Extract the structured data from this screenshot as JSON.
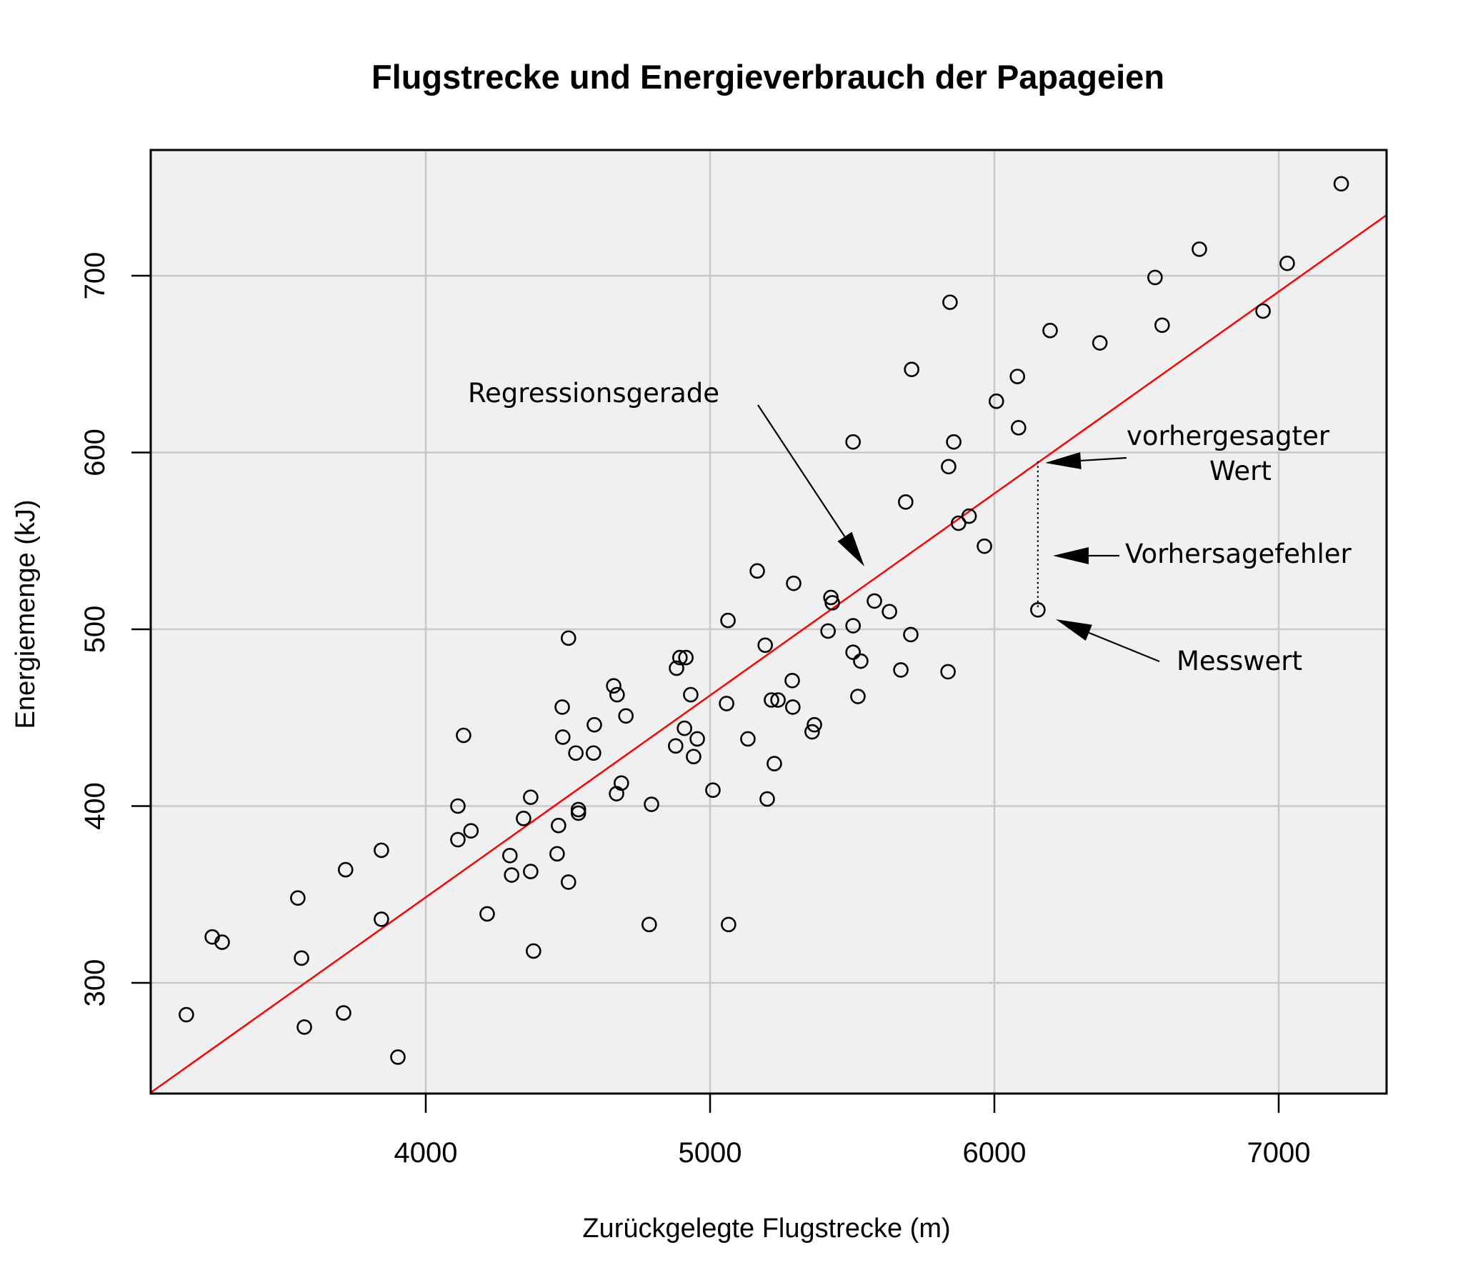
{
  "chart_data": {
    "type": "scatter",
    "title": "Flugstrecke und Energieverbrauch der Papageien",
    "xlabel": "Zurückgelegte Flugstrecke (m)",
    "ylabel": "Energiemenge (kJ)",
    "xlim": [
      3033,
      7382
    ],
    "ylim": [
      237,
      771
    ],
    "x_ticks": [
      4000,
      5000,
      6000,
      7000
    ],
    "y_ticks": [
      300,
      400,
      500,
      600,
      700
    ],
    "grid": true,
    "background": "#f0f0f0",
    "grid_color": "#c8c8c8",
    "point_style": "open-circle",
    "point_color": "#000000",
    "regression_line": {
      "color": "#ff0000",
      "slope": 0.1142,
      "intercept": -108.4,
      "x_range": [
        3033,
        7382
      ]
    },
    "points": [
      [
        3158,
        282
      ],
      [
        3249,
        326
      ],
      [
        3284,
        323
      ],
      [
        3550,
        348
      ],
      [
        3563,
        314
      ],
      [
        3573,
        275
      ],
      [
        3711,
        283
      ],
      [
        3718,
        364
      ],
      [
        3844,
        375
      ],
      [
        3844,
        336
      ],
      [
        3902,
        258
      ],
      [
        4113,
        400
      ],
      [
        4113,
        381
      ],
      [
        4133,
        440
      ],
      [
        4159,
        386
      ],
      [
        4216,
        339
      ],
      [
        4296,
        372
      ],
      [
        4302,
        361
      ],
      [
        4344,
        393
      ],
      [
        4369,
        405
      ],
      [
        4369,
        363
      ],
      [
        4379,
        318
      ],
      [
        4462,
        373
      ],
      [
        4467,
        389
      ],
      [
        4480,
        456
      ],
      [
        4482,
        439
      ],
      [
        4502,
        495
      ],
      [
        4502,
        357
      ],
      [
        4528,
        430
      ],
      [
        4537,
        398
      ],
      [
        4537,
        396
      ],
      [
        4590,
        430
      ],
      [
        4593,
        446
      ],
      [
        4661,
        468
      ],
      [
        4671,
        407
      ],
      [
        4673,
        463
      ],
      [
        4688,
        413
      ],
      [
        4704,
        451
      ],
      [
        4786,
        333
      ],
      [
        4794,
        401
      ],
      [
        4879,
        434
      ],
      [
        4882,
        478
      ],
      [
        4894,
        484
      ],
      [
        4910,
        444
      ],
      [
        4915,
        484
      ],
      [
        4932,
        463
      ],
      [
        4942,
        428
      ],
      [
        4955,
        438
      ],
      [
        5010,
        409
      ],
      [
        5058,
        458
      ],
      [
        5063,
        505
      ],
      [
        5065,
        333
      ],
      [
        5133,
        438
      ],
      [
        5166,
        533
      ],
      [
        5194,
        491
      ],
      [
        5201,
        404
      ],
      [
        5216,
        460
      ],
      [
        5226,
        424
      ],
      [
        5239,
        460
      ],
      [
        5289,
        471
      ],
      [
        5291,
        456
      ],
      [
        5294,
        526
      ],
      [
        5359,
        442
      ],
      [
        5367,
        446
      ],
      [
        5415,
        499
      ],
      [
        5425,
        518
      ],
      [
        5430,
        515
      ],
      [
        5503,
        502
      ],
      [
        5503,
        487
      ],
      [
        5503,
        606
      ],
      [
        5520,
        462
      ],
      [
        5530,
        482
      ],
      [
        5578,
        516
      ],
      [
        5631,
        510
      ],
      [
        5671,
        477
      ],
      [
        5688,
        572
      ],
      [
        5706,
        497
      ],
      [
        5709,
        647
      ],
      [
        5837,
        476
      ],
      [
        5839,
        592
      ],
      [
        5844,
        685
      ],
      [
        5857,
        606
      ],
      [
        5874,
        560
      ],
      [
        5911,
        564
      ],
      [
        5965,
        547
      ],
      [
        6007,
        629
      ],
      [
        6081,
        643
      ],
      [
        6085,
        614
      ],
      [
        6153,
        511
      ],
      [
        6196,
        669
      ],
      [
        6371,
        662
      ],
      [
        6565,
        699
      ],
      [
        6590,
        672
      ],
      [
        6721,
        715
      ],
      [
        6945,
        680
      ],
      [
        7030,
        707
      ],
      [
        7220,
        752
      ]
    ],
    "annotations": [
      {
        "text": "Regressionsgerade",
        "points_to": "regression line",
        "arrow_tip": [
          5550,
          532
        ]
      },
      {
        "text": "vorhergesagter Wert",
        "lines": [
          "vorhergesagter",
          "Wert"
        ],
        "points_to": [
          6153,
          595
        ]
      },
      {
        "text": "Vorhersagefehler",
        "points_to": "residual segment at x=6153 between 511 and 595"
      },
      {
        "text": "Messwert",
        "points_to": [
          6153,
          511
        ]
      }
    ],
    "highlighted_residual": {
      "x": 6153,
      "predicted": 595,
      "measured": 511
    }
  },
  "labels": {
    "title": "Flugstrecke und Energieverbrauch der Papageien",
    "xlabel": "Zurückgelegte Flugstrecke (m)",
    "ylabel": "Energiemenge (kJ)",
    "x_ticks": [
      "4000",
      "5000",
      "6000",
      "7000"
    ],
    "y_ticks": [
      "300",
      "400",
      "500",
      "600",
      "700"
    ],
    "annot_regression": "Regressionsgerade",
    "annot_predicted_1": "vorhergesagter",
    "annot_predicted_2": "Wert",
    "annot_error": "Vorhersagefehler",
    "annot_measured": "Messwert"
  }
}
